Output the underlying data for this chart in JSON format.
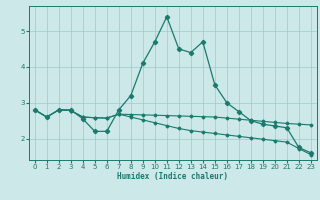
{
  "xlabel": "Humidex (Indice chaleur)",
  "x": [
    0,
    1,
    2,
    3,
    4,
    5,
    6,
    7,
    8,
    9,
    10,
    11,
    12,
    13,
    14,
    15,
    16,
    17,
    18,
    19,
    20,
    21,
    22,
    23
  ],
  "line1": [
    2.8,
    2.6,
    2.8,
    2.8,
    2.55,
    2.2,
    2.2,
    2.8,
    3.2,
    4.1,
    4.7,
    5.4,
    4.5,
    4.4,
    4.7,
    3.5,
    3.0,
    2.75,
    2.5,
    2.4,
    2.35,
    2.3,
    1.75,
    1.6
  ],
  "line2": [
    2.8,
    2.6,
    2.8,
    2.78,
    2.6,
    2.58,
    2.57,
    2.68,
    2.67,
    2.66,
    2.65,
    2.64,
    2.63,
    2.62,
    2.61,
    2.6,
    2.57,
    2.54,
    2.51,
    2.48,
    2.45,
    2.42,
    2.4,
    2.38
  ],
  "line3": [
    2.8,
    2.6,
    2.8,
    2.78,
    2.6,
    2.58,
    2.57,
    2.68,
    2.6,
    2.52,
    2.44,
    2.36,
    2.28,
    2.22,
    2.18,
    2.14,
    2.1,
    2.06,
    2.02,
    1.98,
    1.94,
    1.9,
    1.72,
    1.55
  ],
  "line_color": "#1a7a6e",
  "bg_color": "#cce8e8",
  "grid_color": "#99cccc",
  "ylim": [
    1.4,
    5.7
  ],
  "xlim": [
    -0.5,
    23.5
  ],
  "yticks": [
    2,
    3,
    4,
    5
  ],
  "xticks": [
    0,
    1,
    2,
    3,
    4,
    5,
    6,
    7,
    8,
    9,
    10,
    11,
    12,
    13,
    14,
    15,
    16,
    17,
    18,
    19,
    20,
    21,
    22,
    23
  ]
}
